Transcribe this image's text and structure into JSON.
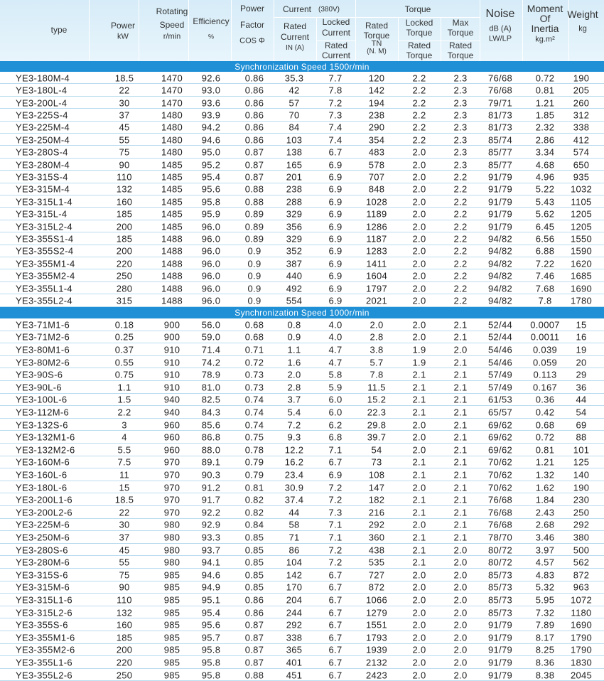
{
  "header": {
    "type": "type",
    "power": [
      "Power",
      "kW"
    ],
    "speed": [
      "Rotating",
      "Speed",
      "r/min"
    ],
    "efficiency": [
      "Efficiency",
      "%"
    ],
    "factor": [
      "Power",
      "Factor",
      "COS Φ"
    ],
    "current": {
      "title": "Current",
      "voltage": "(380V)",
      "rated": [
        "Rated",
        "Current",
        "IN (A)"
      ],
      "locked": [
        "Locked",
        "Current"
      ],
      "locked_base": [
        "Rated",
        "Current"
      ]
    },
    "torque": {
      "title": "Torque",
      "rated": [
        "Rated",
        "Torque",
        "TN",
        "(N. M)"
      ],
      "locked": [
        "Locked",
        "Torque"
      ],
      "locked_base": [
        "Rated",
        "Torque"
      ],
      "max": [
        "Max",
        "Torque"
      ],
      "max_base": [
        "Rated",
        "Torque"
      ]
    },
    "noise": [
      "Noise",
      "dB (A)",
      "LW/LP"
    ],
    "inertia": [
      "Moment",
      "Of",
      "Inertia",
      "kg.m²"
    ],
    "weight": [
      "Weight",
      "kg"
    ]
  },
  "sections": [
    {
      "title": "Synchronization Speed  1500r/min",
      "rows": [
        [
          "YE3-180M-4",
          "18.5",
          "1470",
          "92.6",
          "0.86",
          "35.3",
          "7.7",
          "120",
          "2.2",
          "2.3",
          "76/68",
          "0.72",
          "190"
        ],
        [
          "YE3-180L-4",
          "22",
          "1470",
          "93.0",
          "0.86",
          "42",
          "7.8",
          "142",
          "2.2",
          "2.3",
          "76/68",
          "0.81",
          "205"
        ],
        [
          "YE3-200L-4",
          "30",
          "1470",
          "93.6",
          "0.86",
          "57",
          "7.2",
          "194",
          "2.2",
          "2.3",
          "79/71",
          "1.21",
          "260"
        ],
        [
          "YE3-225S-4",
          "37",
          "1480",
          "93.9",
          "0.86",
          "70",
          "7.3",
          "238",
          "2.2",
          "2.3",
          "81/73",
          "1.85",
          "312"
        ],
        [
          "YE3-225M-4",
          "45",
          "1480",
          "94.2",
          "0.86",
          "84",
          "7.4",
          "290",
          "2.2",
          "2.3",
          "81/73",
          "2.32",
          "338"
        ],
        [
          "YE3-250M-4",
          "55",
          "1480",
          "94.6",
          "0.86",
          "103",
          "7.4",
          "354",
          "2.2",
          "2.3",
          "85/74",
          "2.86",
          "412"
        ],
        [
          "YE3-280S-4",
          "75",
          "1480",
          "95.0",
          "0.87",
          "138",
          "6.7",
          "483",
          "2.0",
          "2.3",
          "85/77",
          "3.34",
          "574"
        ],
        [
          "YE3-280M-4",
          "90",
          "1485",
          "95.2",
          "0.87",
          "165",
          "6.9",
          "578",
          "2.0",
          "2.3",
          "85/77",
          "4.68",
          "650"
        ],
        [
          "YE3-315S-4",
          "110",
          "1485",
          "95.4",
          "0.87",
          "201",
          "6.9",
          "707",
          "2.0",
          "2.2",
          "91/79",
          "4.96",
          "935"
        ],
        [
          "YE3-315M-4",
          "132",
          "1485",
          "95.6",
          "0.88",
          "238",
          "6.9",
          "848",
          "2.0",
          "2.2",
          "91/79",
          "5.22",
          "1032"
        ],
        [
          "YE3-315L1-4",
          "160",
          "1485",
          "95.8",
          "0.88",
          "288",
          "6.9",
          "1028",
          "2.0",
          "2.2",
          "91/79",
          "5.43",
          "1105"
        ],
        [
          "YE3-315L-4",
          "185",
          "1485",
          "95.9",
          "0.89",
          "329",
          "6.9",
          "1189",
          "2.0",
          "2.2",
          "91/79",
          "5.62",
          "1205"
        ],
        [
          "YE3-315L2-4",
          "200",
          "1485",
          "96.0",
          "0.89",
          "356",
          "6.9",
          "1286",
          "2.0",
          "2.2",
          "91/79",
          "6.45",
          "1205"
        ],
        [
          "YE3-355S1-4",
          "185",
          "1488",
          "96.0",
          "0.89",
          "329",
          "6.9",
          "1187",
          "2.0",
          "2.2",
          "94/82",
          "6.56",
          "1550"
        ],
        [
          "YE3-355S2-4",
          "200",
          "1488",
          "96.0",
          "0.9",
          "352",
          "6.9",
          "1283",
          "2.0",
          "2.2",
          "94/82",
          "6.88",
          "1590"
        ],
        [
          "YE3-355M1-4",
          "220",
          "1488",
          "96.0",
          "0.9",
          "387",
          "6.9",
          "1411",
          "2.0",
          "2.2",
          "94/82",
          "7.22",
          "1620"
        ],
        [
          "YE3-355M2-4",
          "250",
          "1488",
          "96.0",
          "0.9",
          "440",
          "6.9",
          "1604",
          "2.0",
          "2.2",
          "94/82",
          "7.46",
          "1685"
        ],
        [
          "YE3-355L1-4",
          "280",
          "1488",
          "96.0",
          "0.9",
          "492",
          "6.9",
          "1797",
          "2.0",
          "2.2",
          "94/82",
          "7.68",
          "1690"
        ],
        [
          "YE3-355L2-4",
          "315",
          "1488",
          "96.0",
          "0.9",
          "554",
          "6.9",
          "2021",
          "2.0",
          "2.2",
          "94/82",
          "7.8",
          "1780"
        ]
      ]
    },
    {
      "title": "Synchronization Speed  1000r/min",
      "rows": [
        [
          "YE3-71M1-6",
          "0.18",
          "900",
          "56.0",
          "0.68",
          "0.8",
          "4.0",
          "2.0",
          "2.0",
          "2.1",
          "52/44",
          "0.0007",
          "15"
        ],
        [
          "YE3-71M2-6",
          "0.25",
          "900",
          "59.0",
          "0.68",
          "0.9",
          "4.0",
          "2.8",
          "2.0",
          "2.1",
          "52/44",
          "0.0011",
          "16"
        ],
        [
          "YE3-80M1-6",
          "0.37",
          "910",
          "71.4",
          "0.71",
          "1.1",
          "4.7",
          "3.8",
          "1.9",
          "2.0",
          "54/46",
          "0.039",
          "19"
        ],
        [
          "YE3-80M2-6",
          "0.55",
          "910",
          "74.2",
          "0.72",
          "1.6",
          "4.7",
          "5.7",
          "1.9",
          "2.1",
          "54/46",
          "0.059",
          "20"
        ],
        [
          "YE3-90S-6",
          "0.75",
          "910",
          "78.9",
          "0.73",
          "2.0",
          "5.8",
          "7.8",
          "2.1",
          "2.1",
          "57/49",
          "0.113",
          "29"
        ],
        [
          "YE3-90L-6",
          "1.1",
          "910",
          "81.0",
          "0.73",
          "2.8",
          "5.9",
          "11.5",
          "2.1",
          "2.1",
          "57/49",
          "0.167",
          "36"
        ],
        [
          "YE3-100L-6",
          "1.5",
          "940",
          "82.5",
          "0.74",
          "3.7",
          "6.0",
          "15.2",
          "2.1",
          "2.1",
          "61/53",
          "0.36",
          "44"
        ],
        [
          "YE3-112M-6",
          "2.2",
          "940",
          "84.3",
          "0.74",
          "5.4",
          "6.0",
          "22.3",
          "2.1",
          "2.1",
          "65/57",
          "0.42",
          "54"
        ],
        [
          "YE3-132S-6",
          "3",
          "960",
          "85.6",
          "0.74",
          "7.2",
          "6.2",
          "29.8",
          "2.0",
          "2.1",
          "69/62",
          "0.68",
          "69"
        ],
        [
          "YE3-132M1-6",
          "4",
          "960",
          "86.8",
          "0.75",
          "9.3",
          "6.8",
          "39.7",
          "2.0",
          "2.1",
          "69/62",
          "0.72",
          "88"
        ],
        [
          "YE3-132M2-6",
          "5.5",
          "960",
          "88.0",
          "0.78",
          "12.2",
          "7.1",
          "54",
          "2.0",
          "2.1",
          "69/62",
          "0.81",
          "101"
        ],
        [
          "YE3-160M-6",
          "7.5",
          "970",
          "89.1",
          "0.79",
          "16.2",
          "6.7",
          "73",
          "2.1",
          "2.1",
          "70/62",
          "1.21",
          "125"
        ],
        [
          "YE3-160L-6",
          "11",
          "970",
          "90.3",
          "0.79",
          "23.4",
          "6.9",
          "108",
          "2.1",
          "2.1",
          "70/62",
          "1.32",
          "140"
        ],
        [
          "YE3-180L-6",
          "15",
          "970",
          "91.2",
          "0.81",
          "30.9",
          "7.2",
          "147",
          "2.0",
          "2.1",
          "70/62",
          "1.62",
          "190"
        ],
        [
          "YE3-200L1-6",
          "18.5",
          "970",
          "91.7",
          "0.82",
          "37.4",
          "7.2",
          "182",
          "2.1",
          "2.1",
          "76/68",
          "1.84",
          "230"
        ],
        [
          "YE3-200L2-6",
          "22",
          "970",
          "92.2",
          "0.82",
          "44",
          "7.3",
          "216",
          "2.1",
          "2.1",
          "76/68",
          "2.43",
          "250"
        ],
        [
          "YE3-225M-6",
          "30",
          "980",
          "92.9",
          "0.84",
          "58",
          "7.1",
          "292",
          "2.0",
          "2.1",
          "76/68",
          "2.68",
          "292"
        ],
        [
          "YE3-250M-6",
          "37",
          "980",
          "93.3",
          "0.85",
          "71",
          "7.1",
          "360",
          "2.1",
          "2.1",
          "78/70",
          "3.46",
          "380"
        ],
        [
          "YE3-280S-6",
          "45",
          "980",
          "93.7",
          "0.85",
          "86",
          "7.2",
          "438",
          "2.1",
          "2.0",
          "80/72",
          "3.97",
          "500"
        ],
        [
          "YE3-280M-6",
          "55",
          "980",
          "94.1",
          "0.85",
          "104",
          "7.2",
          "535",
          "2.1",
          "2.0",
          "80/72",
          "4.57",
          "562"
        ],
        [
          "YE3-315S-6",
          "75",
          "985",
          "94.6",
          "0.85",
          "142",
          "6.7",
          "727",
          "2.0",
          "2.0",
          "85/73",
          "4.83",
          "872"
        ],
        [
          "YE3-315M-6",
          "90",
          "985",
          "94.9",
          "0.85",
          "170",
          "6.7",
          "872",
          "2.0",
          "2.0",
          "85/73",
          "5.32",
          "963"
        ],
        [
          "YE3-315L1-6",
          "110",
          "985",
          "95.1",
          "0.86",
          "204",
          "6.7",
          "1066",
          "2.0",
          "2.0",
          "85/73",
          "5.95",
          "1072"
        ],
        [
          "YE3-315L2-6",
          "132",
          "985",
          "95.4",
          "0.86",
          "244",
          "6.7",
          "1279",
          "2.0",
          "2.0",
          "85/73",
          "7.32",
          "1180"
        ],
        [
          "YE3-355S-6",
          "160",
          "985",
          "95.6",
          "0.87",
          "292",
          "6.7",
          "1551",
          "2.0",
          "2.0",
          "91/79",
          "7.89",
          "1690"
        ],
        [
          "YE3-355M1-6",
          "185",
          "985",
          "95.7",
          "0.87",
          "338",
          "6.7",
          "1793",
          "2.0",
          "2.0",
          "91/79",
          "8.17",
          "1790"
        ],
        [
          "YE3-355M2-6",
          "200",
          "985",
          "95.8",
          "0.87",
          "365",
          "6.7",
          "1939",
          "2.0",
          "2.0",
          "91/79",
          "8.25",
          "1790"
        ],
        [
          "YE3-355L1-6",
          "220",
          "985",
          "95.8",
          "0.87",
          "401",
          "6.7",
          "2132",
          "2.0",
          "2.0",
          "91/79",
          "8.36",
          "1830"
        ],
        [
          "YE3-355L2-6",
          "250",
          "985",
          "95.8",
          "0.88",
          "451",
          "6.7",
          "2423",
          "2.0",
          "2.0",
          "91/79",
          "8.38",
          "2045"
        ]
      ]
    }
  ]
}
